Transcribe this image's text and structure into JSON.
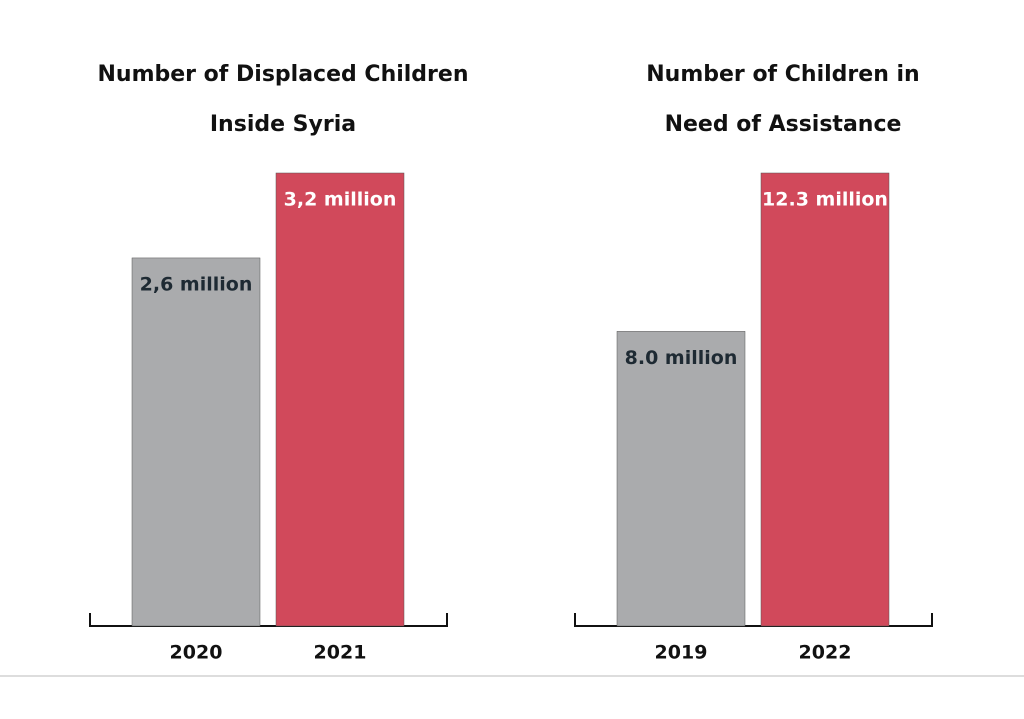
{
  "chart_data": [
    {
      "type": "bar",
      "title": "Number of Displaced Children Inside Syria",
      "categories": [
        "2020",
        "2021"
      ],
      "values": [
        2.6,
        3.2
      ],
      "value_labels": [
        "2,6 million",
        "3,2 million"
      ],
      "colors": [
        "#aaabad",
        "#d1495b"
      ]
    },
    {
      "type": "bar",
      "title": "Number of Children in Need of Assistance",
      "categories": [
        "2019",
        "2022"
      ],
      "values": [
        8.0,
        12.3
      ],
      "value_labels": [
        "8.0 million",
        "12.3 million"
      ],
      "colors": [
        "#aaabad",
        "#d1495b"
      ]
    }
  ]
}
